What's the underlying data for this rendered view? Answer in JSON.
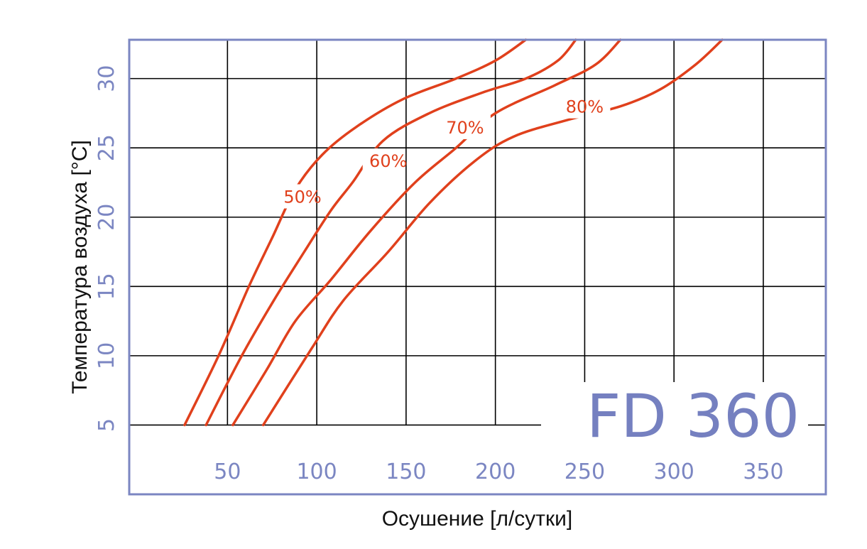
{
  "chart_data": {
    "type": "line",
    "title": "",
    "model": "FD 360",
    "xlabel": "Осушение [л/сутки]",
    "ylabel": "Температура воздуха [°C]",
    "xlim": [
      -5,
      385
    ],
    "ylim": [
      0,
      32.8
    ],
    "x_ticks": [
      "50",
      "100",
      "150",
      "200",
      "250",
      "300",
      "350"
    ],
    "y_ticks": [
      "5",
      "10",
      "15",
      "20",
      "25",
      "30"
    ],
    "grid": true,
    "legend": "none",
    "curve_color": "#e0401c",
    "axis_color": "#7b86c2",
    "series": [
      {
        "name": "50%",
        "points": [
          [
            26,
            5
          ],
          [
            45,
            10
          ],
          [
            62,
            15
          ],
          [
            75,
            18.5
          ],
          [
            88,
            22
          ],
          [
            103,
            24.5
          ],
          [
            122,
            26.5
          ],
          [
            148,
            28.5
          ],
          [
            178,
            30
          ],
          [
            200,
            31.3
          ],
          [
            217,
            32.8
          ]
        ]
      },
      {
        "name": "60%",
        "points": [
          [
            38,
            5
          ],
          [
            58,
            10
          ],
          [
            76,
            14
          ],
          [
            93,
            17.5
          ],
          [
            108,
            20.5
          ],
          [
            120,
            22.5
          ],
          [
            137,
            25.5
          ],
          [
            163,
            27.5
          ],
          [
            193,
            29
          ],
          [
            217,
            30
          ],
          [
            235,
            31.3
          ],
          [
            245,
            32.8
          ]
        ]
      },
      {
        "name": "70%",
        "points": [
          [
            53,
            5
          ],
          [
            72,
            9
          ],
          [
            88,
            12.5
          ],
          [
            108,
            15.5
          ],
          [
            130,
            19
          ],
          [
            155,
            22.5
          ],
          [
            178,
            25
          ],
          [
            200,
            27.5
          ],
          [
            233,
            29.5
          ],
          [
            256,
            31
          ],
          [
            270,
            32.8
          ]
        ]
      },
      {
        "name": "80%",
        "points": [
          [
            70,
            5
          ],
          [
            97,
            10.5
          ],
          [
            115,
            14
          ],
          [
            140,
            17.5
          ],
          [
            163,
            21
          ],
          [
            188,
            24
          ],
          [
            210,
            25.8
          ],
          [
            240,
            27
          ],
          [
            270,
            28
          ],
          [
            292,
            29.2
          ],
          [
            312,
            31
          ],
          [
            327,
            32.8
          ]
        ]
      }
    ]
  }
}
